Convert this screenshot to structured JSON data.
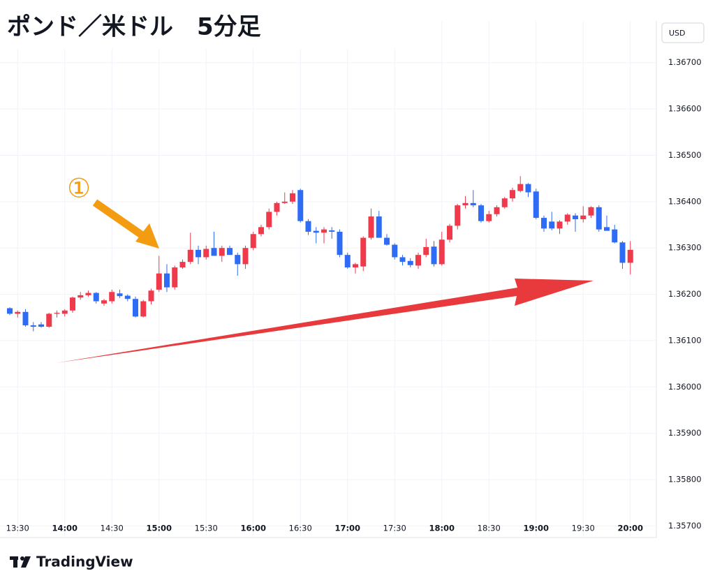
{
  "chart_data": {
    "type": "candlestick",
    "title": "ポンド／米ドル　5分足",
    "currency": "USD",
    "annotation": "①",
    "brand": "TradingView",
    "up_color": "#ef3a4c",
    "down_color": "#2f6cf5",
    "categories": [
      null,
      "13:30",
      null,
      null,
      null,
      null,
      null,
      "14:00",
      null,
      null,
      null,
      null,
      null,
      "14:30",
      null,
      null,
      null,
      null,
      null,
      "15:00",
      null,
      null,
      null,
      null,
      null,
      "15:30",
      null,
      null,
      null,
      null,
      null,
      "16:00",
      null,
      null,
      null,
      null,
      null,
      "16:30",
      null,
      null,
      null,
      null,
      null,
      "17:00",
      null,
      null,
      null,
      null,
      null,
      "17:30",
      null,
      null,
      null,
      null,
      null,
      "18:00",
      null,
      null,
      null,
      null,
      null,
      "18:30",
      null,
      null,
      null,
      null,
      null,
      "19:00",
      null,
      null,
      null,
      null,
      null,
      "19:30",
      null,
      null,
      null,
      null,
      null,
      "20:00"
    ],
    "open": [
      1.3617,
      1.36158,
      1.36162,
      1.36133,
      1.36135,
      1.3613,
      1.36158,
      1.36158,
      1.36165,
      1.36193,
      1.36198,
      1.36203,
      1.3618,
      1.36185,
      1.36202,
      1.36197,
      1.3619,
      1.36152,
      1.36185,
      1.3621,
      1.36245,
      1.36215,
      1.36258,
      1.3627,
      1.36296,
      1.3628,
      1.363,
      1.36283,
      1.363,
      1.36285,
      1.36265,
      1.363,
      1.3633,
      1.36345,
      1.36378,
      1.36397,
      1.364,
      1.36425,
      1.36358,
      1.36337,
      1.36333,
      1.36338,
      1.36335,
      1.36285,
      1.36258,
      1.3626,
      1.36322,
      1.36368,
      1.36322,
      1.36307,
      1.3628,
      1.36272,
      1.36262,
      1.36285,
      1.36303,
      1.36265,
      1.36318,
      1.36348,
      1.36392,
      1.36397,
      1.36392,
      1.36358,
      1.36373,
      1.36388,
      1.36407,
      1.36423,
      1.36438,
      1.36422,
      1.36365,
      1.36357,
      1.36342,
      1.36357,
      1.3637,
      1.36362,
      1.3637,
      1.36388,
      1.36345,
      1.3634,
      1.36312,
      1.36268
    ],
    "high": [
      1.36172,
      1.36165,
      1.36168,
      1.3614,
      1.3614,
      1.3616,
      1.36165,
      1.36168,
      1.36195,
      1.36205,
      1.36208,
      1.36205,
      1.3619,
      1.3621,
      1.3621,
      1.362,
      1.36195,
      1.36188,
      1.36212,
      1.36283,
      1.36265,
      1.36262,
      1.36275,
      1.36333,
      1.36305,
      1.36305,
      1.36335,
      1.36305,
      1.36305,
      1.3629,
      1.36305,
      1.36335,
      1.3635,
      1.36385,
      1.364,
      1.3642,
      1.36425,
      1.36428,
      1.36362,
      1.36345,
      1.36345,
      1.36345,
      1.3634,
      1.3629,
      1.36268,
      1.36325,
      1.36385,
      1.3638,
      1.3633,
      1.3631,
      1.36285,
      1.36278,
      1.3629,
      1.3632,
      1.36315,
      1.36335,
      1.36352,
      1.36395,
      1.36412,
      1.36425,
      1.36395,
      1.3638,
      1.36392,
      1.3641,
      1.3643,
      1.36455,
      1.3644,
      1.36428,
      1.3637,
      1.36378,
      1.3636,
      1.36375,
      1.36375,
      1.3639,
      1.3639,
      1.36392,
      1.3637,
      1.3635,
      1.36315,
      1.36315
    ],
    "low": [
      1.36155,
      1.3615,
      1.3613,
      1.3612,
      1.36128,
      1.36128,
      1.3615,
      1.36152,
      1.3616,
      1.36188,
      1.36195,
      1.3618,
      1.36175,
      1.3618,
      1.36192,
      1.36185,
      1.3615,
      1.3615,
      1.36178,
      1.36205,
      1.36205,
      1.3621,
      1.36255,
      1.36265,
      1.36265,
      1.36275,
      1.36285,
      1.3627,
      1.36285,
      1.3624,
      1.36255,
      1.36295,
      1.36325,
      1.3634,
      1.3637,
      1.36395,
      1.36395,
      1.36355,
      1.36328,
      1.3631,
      1.3631,
      1.3632,
      1.3628,
      1.36255,
      1.36245,
      1.3625,
      1.36318,
      1.36322,
      1.36305,
      1.36275,
      1.36262,
      1.36258,
      1.36255,
      1.3628,
      1.3626,
      1.36262,
      1.36312,
      1.3634,
      1.36385,
      1.36388,
      1.36355,
      1.36355,
      1.36368,
      1.36385,
      1.364,
      1.3642,
      1.3641,
      1.36362,
      1.36335,
      1.36338,
      1.3633,
      1.3635,
      1.36335,
      1.36355,
      1.36365,
      1.36335,
      1.3634,
      1.3631,
      1.36255,
      1.36243
    ],
    "close": [
      1.36158,
      1.36162,
      1.36133,
      1.3613,
      1.3613,
      1.36158,
      1.3616,
      1.36165,
      1.36193,
      1.36198,
      1.36203,
      1.36185,
      1.36187,
      1.36205,
      1.36196,
      1.3619,
      1.36152,
      1.36185,
      1.36208,
      1.36245,
      1.36215,
      1.36258,
      1.3627,
      1.36296,
      1.3628,
      1.36298,
      1.36283,
      1.363,
      1.36285,
      1.36265,
      1.363,
      1.3633,
      1.36345,
      1.36378,
      1.36397,
      1.364,
      1.36418,
      1.36358,
      1.36335,
      1.36333,
      1.3634,
      1.36335,
      1.36285,
      1.36258,
      1.36265,
      1.36322,
      1.36368,
      1.36322,
      1.36307,
      1.3628,
      1.3627,
      1.36263,
      1.36285,
      1.36302,
      1.36265,
      1.36318,
      1.36348,
      1.36392,
      1.36397,
      1.36392,
      1.36358,
      1.36373,
      1.36388,
      1.36407,
      1.36425,
      1.36438,
      1.3642,
      1.36365,
      1.36342,
      1.36342,
      1.36357,
      1.36372,
      1.36362,
      1.3637,
      1.36388,
      1.3634,
      1.36337,
      1.36312,
      1.36268,
      1.36296
    ],
    "ylim": [
      1.35675,
      1.3679
    ],
    "yticks": [
      {
        "value": 1.367,
        "label": "1.36700"
      },
      {
        "value": 1.366,
        "label": "1.36600"
      },
      {
        "value": 1.365,
        "label": "1.36500"
      },
      {
        "value": 1.364,
        "label": "1.36400"
      },
      {
        "value": 1.363,
        "label": "1.36300"
      },
      {
        "value": 1.362,
        "label": "1.36200"
      },
      {
        "value": 1.361,
        "label": "1.36100"
      },
      {
        "value": 1.36,
        "label": "1.36000"
      },
      {
        "value": 1.359,
        "label": "1.35900"
      },
      {
        "value": 1.358,
        "label": "1.35800"
      },
      {
        "value": 1.357,
        "label": "1.35700"
      }
    ],
    "grid": true
  }
}
